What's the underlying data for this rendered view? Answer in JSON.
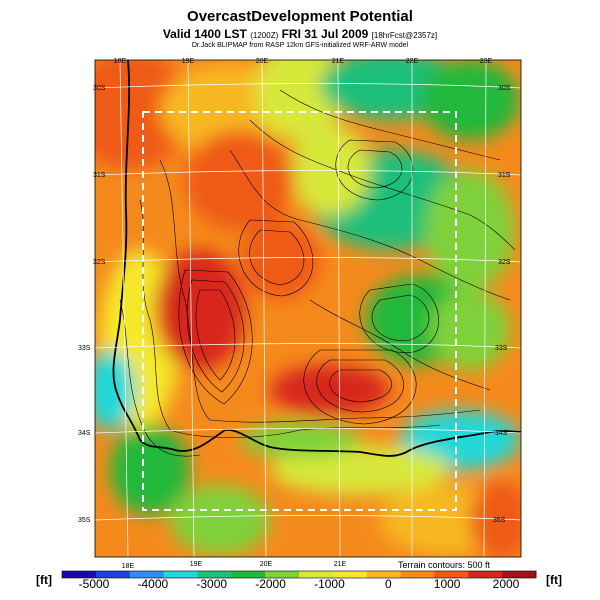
{
  "header": {
    "title": "OvercastDevelopment Potential",
    "valid_prefix": "Valid 1400 LST",
    "valid_code": "(1200Z)",
    "valid_date": "FRI 31 Jul 2009",
    "forecast_tag": "[18hrFcst@2357z]",
    "credit": "Dr.Jack BLIPMAP from RASP 12km GFS-initialized WRF-ARW model"
  },
  "map": {
    "lon_labels_top": [
      "18E",
      "19E",
      "20E",
      "21E",
      "22E",
      "23E"
    ],
    "lon_labels_bottom": [
      "18E",
      "19E",
      "20E",
      "21E"
    ],
    "lat_labels_left": [
      "30S",
      "31S",
      "32S",
      "33S",
      "34S",
      "35S"
    ],
    "lat_labels_right": [
      "30S",
      "31S",
      "32S",
      "33S",
      "34S",
      "35S"
    ],
    "terrain_note": "Terrain contours: 500 ft"
  },
  "colorbar": {
    "unit_left": "[ft]",
    "unit_right": "[ft]",
    "labels": [
      "-5000",
      "-4000",
      "-3000",
      "-2000",
      "-1000",
      "0",
      "1000",
      "2000"
    ],
    "colors": [
      "#1a0aa8",
      "#1f3fe0",
      "#2f8ef0",
      "#21d8d8",
      "#1fbf7a",
      "#22b83a",
      "#7fd23a",
      "#d8e83a",
      "#f5e82a",
      "#f7b822",
      "#f58a1c",
      "#ef5a18",
      "#d8261a",
      "#a3121a"
    ],
    "value_ticks": [
      -5000,
      -4000,
      -3000,
      -2000,
      -1000,
      0,
      1000,
      2000
    ]
  }
}
